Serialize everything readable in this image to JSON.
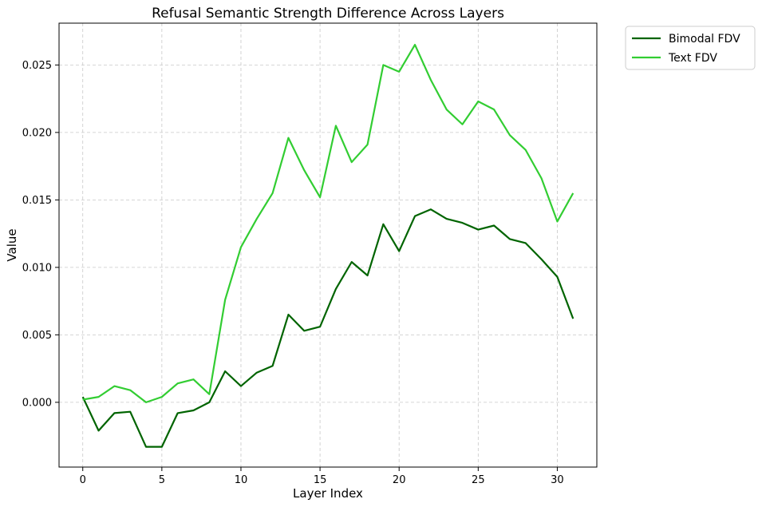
{
  "chart_data": {
    "type": "line",
    "title": "Refusal Semantic Strength Difference Across Layers",
    "xlabel": "Layer Index",
    "ylabel": "Value",
    "xlim": [
      -1.5,
      32.5
    ],
    "ylim": [
      -0.0048,
      0.0281
    ],
    "xticks": [
      0,
      5,
      10,
      15,
      20,
      25,
      30
    ],
    "xtick_labels": [
      "0",
      "5",
      "10",
      "15",
      "20",
      "25",
      "30"
    ],
    "yticks": [
      0.0,
      0.005,
      0.01,
      0.015,
      0.02,
      0.025
    ],
    "ytick_labels": [
      "0.000",
      "0.005",
      "0.010",
      "0.015",
      "0.020",
      "0.025"
    ],
    "grid": true,
    "legend_position": "outside-top-right",
    "x": [
      0,
      1,
      2,
      3,
      4,
      5,
      6,
      7,
      8,
      9,
      10,
      11,
      12,
      13,
      14,
      15,
      16,
      17,
      18,
      19,
      20,
      21,
      22,
      23,
      24,
      25,
      26,
      27,
      28,
      29,
      30,
      31
    ],
    "series": [
      {
        "name": "Bimodal FDV",
        "color": "#006400",
        "values": [
          0.0004,
          -0.0021,
          -0.0008,
          -0.0007,
          -0.0033,
          -0.0033,
          -0.0008,
          -0.0006,
          0.0,
          0.0023,
          0.0012,
          0.0022,
          0.0027,
          0.0065,
          0.0053,
          0.0056,
          0.0084,
          0.0104,
          0.0094,
          0.0132,
          0.0112,
          0.0138,
          0.0143,
          0.0136,
          0.0133,
          0.0128,
          0.0131,
          0.0121,
          0.0118,
          0.0106,
          0.0093,
          0.0062
        ]
      },
      {
        "name": "Text FDV",
        "color": "#32cd32",
        "values": [
          0.0002,
          0.0004,
          0.0012,
          0.0009,
          0.0,
          0.0004,
          0.0014,
          0.0017,
          0.0006,
          0.0076,
          0.0115,
          0.0136,
          0.0155,
          0.0196,
          0.0172,
          0.0152,
          0.0205,
          0.0178,
          0.0191,
          0.025,
          0.0245,
          0.0265,
          0.0239,
          0.0217,
          0.0206,
          0.0223,
          0.0217,
          0.0198,
          0.0187,
          0.0166,
          0.0134,
          0.0155
        ]
      }
    ]
  }
}
